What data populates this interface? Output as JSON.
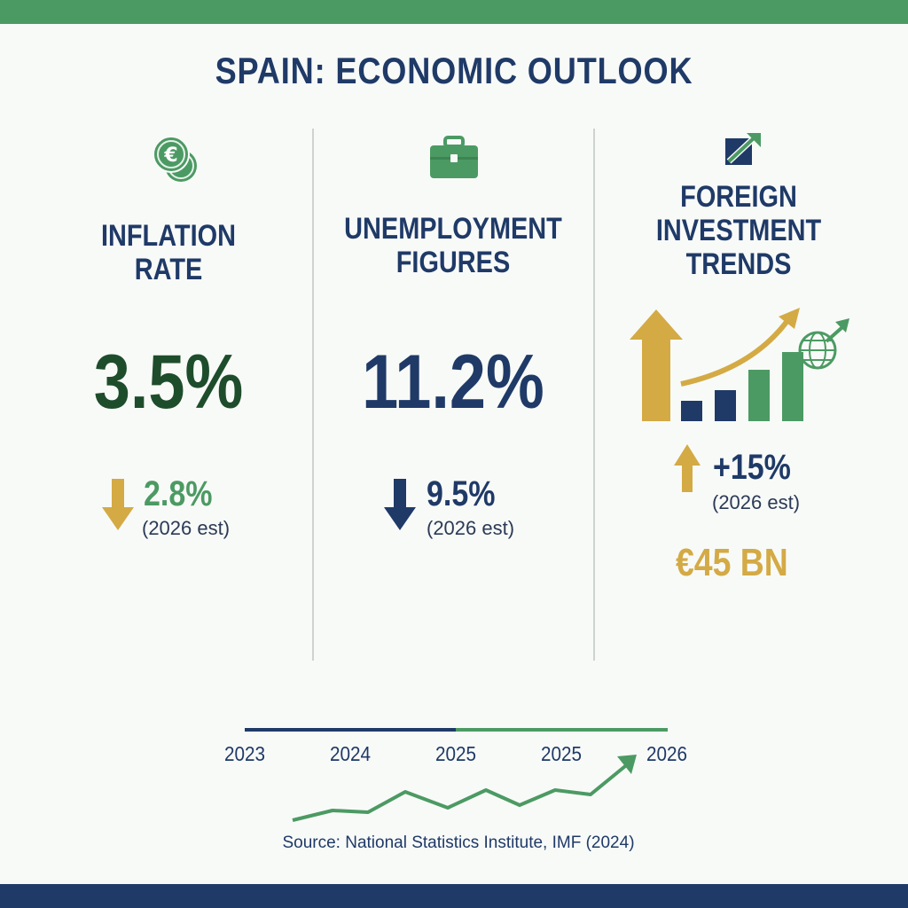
{
  "title": "SPAIN: ECONOMIC OUTLOOK",
  "colors": {
    "green": "#4c9a63",
    "dark_green": "#1e4d2b",
    "navy": "#1f3a67",
    "gold": "#d4aa45",
    "light_green_text": "#4c9a63"
  },
  "panels": [
    {
      "icon": "euro-coins-icon",
      "label_lines": [
        "INFLATION",
        "RATE"
      ],
      "value": "3.5%",
      "forecast_direction": "down",
      "forecast_value": "2.8%",
      "forecast_note": "(2026 est)"
    },
    {
      "icon": "briefcase-icon",
      "label_lines": [
        "UNEMPLOYMENT",
        "FIGURES"
      ],
      "value": "11.2%",
      "forecast_direction": "down",
      "forecast_value": "9.5%",
      "forecast_note": "(2026 est)"
    },
    {
      "icon": "trend-arrow-icon",
      "label_lines": [
        "FOREIGN",
        "INVESTMENT",
        "TRENDS"
      ],
      "chart_icon": "investment-growth-icon",
      "forecast_direction": "up",
      "forecast_value": "+15%",
      "forecast_note": "(2026 est)",
      "amount": "€45 BN"
    }
  ],
  "timeline": {
    "ticks": [
      "2023",
      "2024",
      "2025",
      "2025",
      "2026"
    ],
    "trend_direction": "up"
  },
  "source": "Source: National Statistics Institute, IMF (2024)"
}
